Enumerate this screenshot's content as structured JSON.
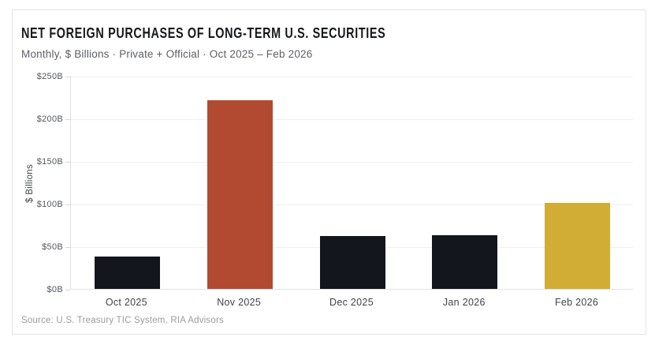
{
  "card": {
    "title": "NET FOREIGN PURCHASES OF LONG-TERM U.S. SECURITIES",
    "subtitle": "Monthly, $ Billions · Private + Official · Oct 2025 – Feb 2026",
    "source": "Source: U.S. Treasury TIC System, RIA Advisors"
  },
  "chart_data": {
    "type": "bar",
    "title": "NET FOREIGN PURCHASES OF LONG-TERM U.S. SECURITIES",
    "subtitle": "Monthly, $ Billions · Private + Official · Oct 2025 – Feb 2026",
    "categories": [
      "Oct 2025",
      "Nov 2025",
      "Dec 2025",
      "Jan 2026",
      "Feb 2026"
    ],
    "values": [
      38,
      221,
      62,
      63,
      101
    ],
    "bar_colors": [
      "#14161e",
      "#b24a32",
      "#14161e",
      "#14161e",
      "#d1ad35"
    ],
    "xlabel": "",
    "ylabel": "$ Billions",
    "ylim": [
      0,
      250
    ],
    "ytick_step": 50,
    "ytick_labels": [
      "$0B",
      "$50B",
      "$100B",
      "$150B",
      "$200B",
      "$250B"
    ],
    "grid": true,
    "legend": false,
    "source": "Source: U.S. Treasury TIC System, RIA Advisors",
    "accent_colors": {
      "dark": "#14161e",
      "red": "#b24a32",
      "gold": "#d1ad35"
    }
  }
}
